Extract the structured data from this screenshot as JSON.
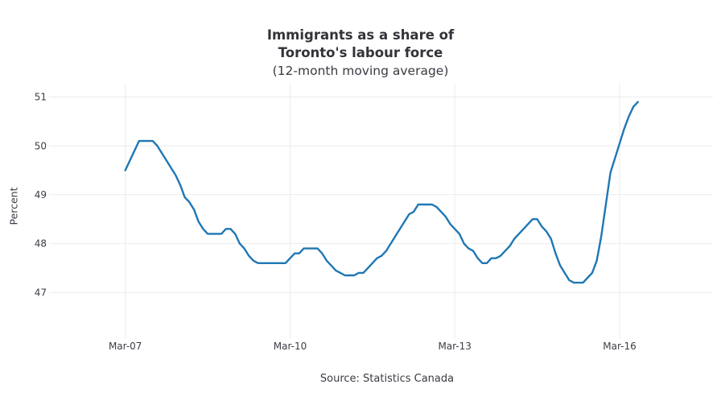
{
  "chart": {
    "title_line1": "Immigrants as a share of",
    "title_line2": "Toronto's labour force",
    "subtitle": "(12-month moving average)",
    "ylabel": "Percent",
    "source": "Source: Statistics Canada"
  },
  "chart_data": {
    "type": "line",
    "title": "Immigrants as a share of Toronto's labour force (12-month moving average)",
    "xlabel": "",
    "ylabel": "Percent",
    "source": "Source: Statistics Canada",
    "frequency": "monthly",
    "start_month": "Mar-2007",
    "end_month": "Jul-2016",
    "x_tick_labels": [
      "Mar-07",
      "Mar-10",
      "Mar-13",
      "Mar-16"
    ],
    "x_tick_month_index": [
      0,
      36,
      72,
      108
    ],
    "y_ticks": [
      47,
      48,
      49,
      50,
      51
    ],
    "ylim": [
      46.1,
      51.3
    ],
    "grid": true,
    "legend": false,
    "line_color": "#1f77b4",
    "grid_color": "#ececec",
    "values": [
      49.5,
      49.7,
      49.9,
      50.1,
      50.1,
      50.1,
      50.1,
      50.0,
      49.85,
      49.7,
      49.55,
      49.4,
      49.2,
      48.95,
      48.85,
      48.7,
      48.45,
      48.3,
      48.2,
      48.2,
      48.2,
      48.2,
      48.3,
      48.3,
      48.2,
      48.0,
      47.9,
      47.75,
      47.65,
      47.6,
      47.6,
      47.6,
      47.6,
      47.6,
      47.6,
      47.6,
      47.7,
      47.8,
      47.8,
      47.9,
      47.9,
      47.9,
      47.9,
      47.8,
      47.65,
      47.55,
      47.45,
      47.4,
      47.35,
      47.35,
      47.35,
      47.4,
      47.4,
      47.5,
      47.6,
      47.7,
      47.75,
      47.85,
      48.0,
      48.15,
      48.3,
      48.45,
      48.6,
      48.65,
      48.8,
      48.8,
      48.8,
      48.8,
      48.75,
      48.65,
      48.55,
      48.4,
      48.3,
      48.2,
      48.0,
      47.9,
      47.85,
      47.7,
      47.6,
      47.6,
      47.7,
      47.7,
      47.75,
      47.85,
      47.95,
      48.1,
      48.2,
      48.3,
      48.4,
      48.5,
      48.5,
      48.35,
      48.25,
      48.1,
      47.8,
      47.55,
      47.4,
      47.25,
      47.2,
      47.2,
      47.2,
      47.3,
      47.4,
      47.65,
      48.15,
      48.8,
      49.45,
      49.75,
      50.05,
      50.35,
      50.6,
      50.8,
      50.9
    ]
  }
}
